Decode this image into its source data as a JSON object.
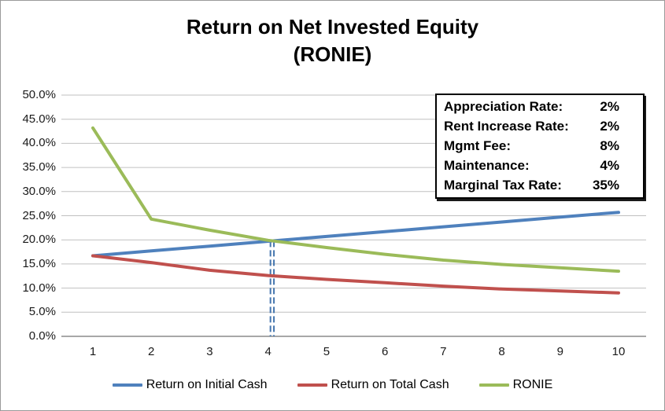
{
  "title": {
    "line1": "Return on Net Invested Equity",
    "line2": "(RONIE)"
  },
  "parameters": {
    "rows": [
      {
        "label": "Appreciation Rate:",
        "value": "2%"
      },
      {
        "label": "Rent Increase Rate:",
        "value": "2%"
      },
      {
        "label": "Mgmt Fee:",
        "value": "8%"
      },
      {
        "label": "Maintenance:",
        "value": "4%"
      },
      {
        "label": "Marginal Tax Rate:",
        "value": "35%"
      }
    ]
  },
  "chart_data": {
    "type": "line",
    "title": "Return on Net Invested Equity (RONIE)",
    "xlabel": "",
    "ylabel": "",
    "x": [
      1,
      2,
      3,
      4,
      5,
      6,
      7,
      8,
      9,
      10
    ],
    "x_tick_labels": [
      "1",
      "2",
      "3",
      "4",
      "5",
      "6",
      "7",
      "8",
      "9",
      "10"
    ],
    "series": [
      {
        "name": "Return on Initial Cash",
        "color": "#4F81BD",
        "values": [
          16.7,
          17.7,
          18.7,
          19.7,
          20.7,
          21.7,
          22.7,
          23.7,
          24.7,
          25.7
        ]
      },
      {
        "name": "Return on Total Cash",
        "color": "#C0504D",
        "values": [
          16.7,
          15.3,
          13.7,
          12.6,
          11.8,
          11.1,
          10.4,
          9.8,
          9.4,
          9.0
        ]
      },
      {
        "name": "RONIE",
        "color": "#9BBB59",
        "values": [
          43.2,
          24.3,
          22.0,
          19.9,
          18.4,
          17.0,
          15.8,
          14.9,
          14.2,
          13.5
        ]
      }
    ],
    "ylim": [
      0,
      50
    ],
    "y_ticks": [
      0,
      5,
      10,
      15,
      20,
      25,
      30,
      35,
      40,
      45,
      50
    ],
    "y_tick_labels": [
      "0.0%",
      "5.0%",
      "10.0%",
      "15.0%",
      "20.0%",
      "25.0%",
      "30.0%",
      "35.0%",
      "40.0%",
      "45.0%",
      "50.0%"
    ],
    "grid": true,
    "legend_position": "bottom",
    "crossover_marker": {
      "x": 4.07,
      "y_top": 19.8,
      "style": "double-dashed",
      "color": "#4576AE"
    },
    "colors": {
      "gridline": "#C0C0C0",
      "axis": "#8C8C8C"
    }
  }
}
